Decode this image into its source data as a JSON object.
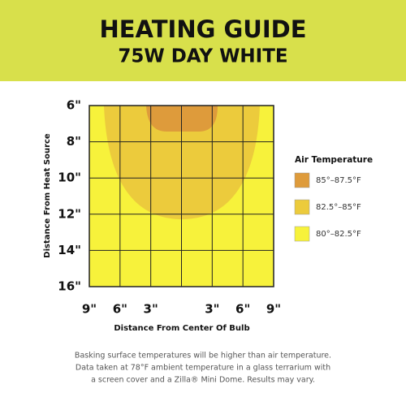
{
  "chart_data": {
    "type": "heatmap",
    "title": "HEATING GUIDE",
    "subtitle": "75W DAY WHITE",
    "xlabel": "Distance From Center Of Bulb",
    "ylabel": "Distance From Heat Source",
    "xlim": [
      -9,
      9
    ],
    "ylim": [
      16,
      6
    ],
    "xticks": [
      {
        "value": -9,
        "label": "9\""
      },
      {
        "value": -6,
        "label": "6\""
      },
      {
        "value": -3,
        "label": "3\""
      },
      {
        "value": 3,
        "label": "3\""
      },
      {
        "value": 6,
        "label": "6\""
      },
      {
        "value": 9,
        "label": "9\""
      }
    ],
    "yticks": [
      {
        "value": 6,
        "label": "6\""
      },
      {
        "value": 8,
        "label": "8\""
      },
      {
        "value": 10,
        "label": "10\""
      },
      {
        "value": 12,
        "label": "12\""
      },
      {
        "value": 14,
        "label": "14\""
      },
      {
        "value": 16,
        "label": "16\""
      }
    ],
    "grid": true,
    "legend_title": "Air Temperature",
    "series": [
      {
        "name": "85°–87.5°F",
        "color": "#de9b3b"
      },
      {
        "name": "82.5°–85°F",
        "color": "#eccb3c"
      },
      {
        "name": "80°–82.5°F",
        "color": "#f7f23b"
      }
    ],
    "footnote": [
      "Basking surface temperatures will be higher than air temperature.",
      "Data taken at 78°F ambient temperature in a glass terrarium with",
      "a screen cover and a Zilla® Mini Dome. Results may vary."
    ]
  }
}
